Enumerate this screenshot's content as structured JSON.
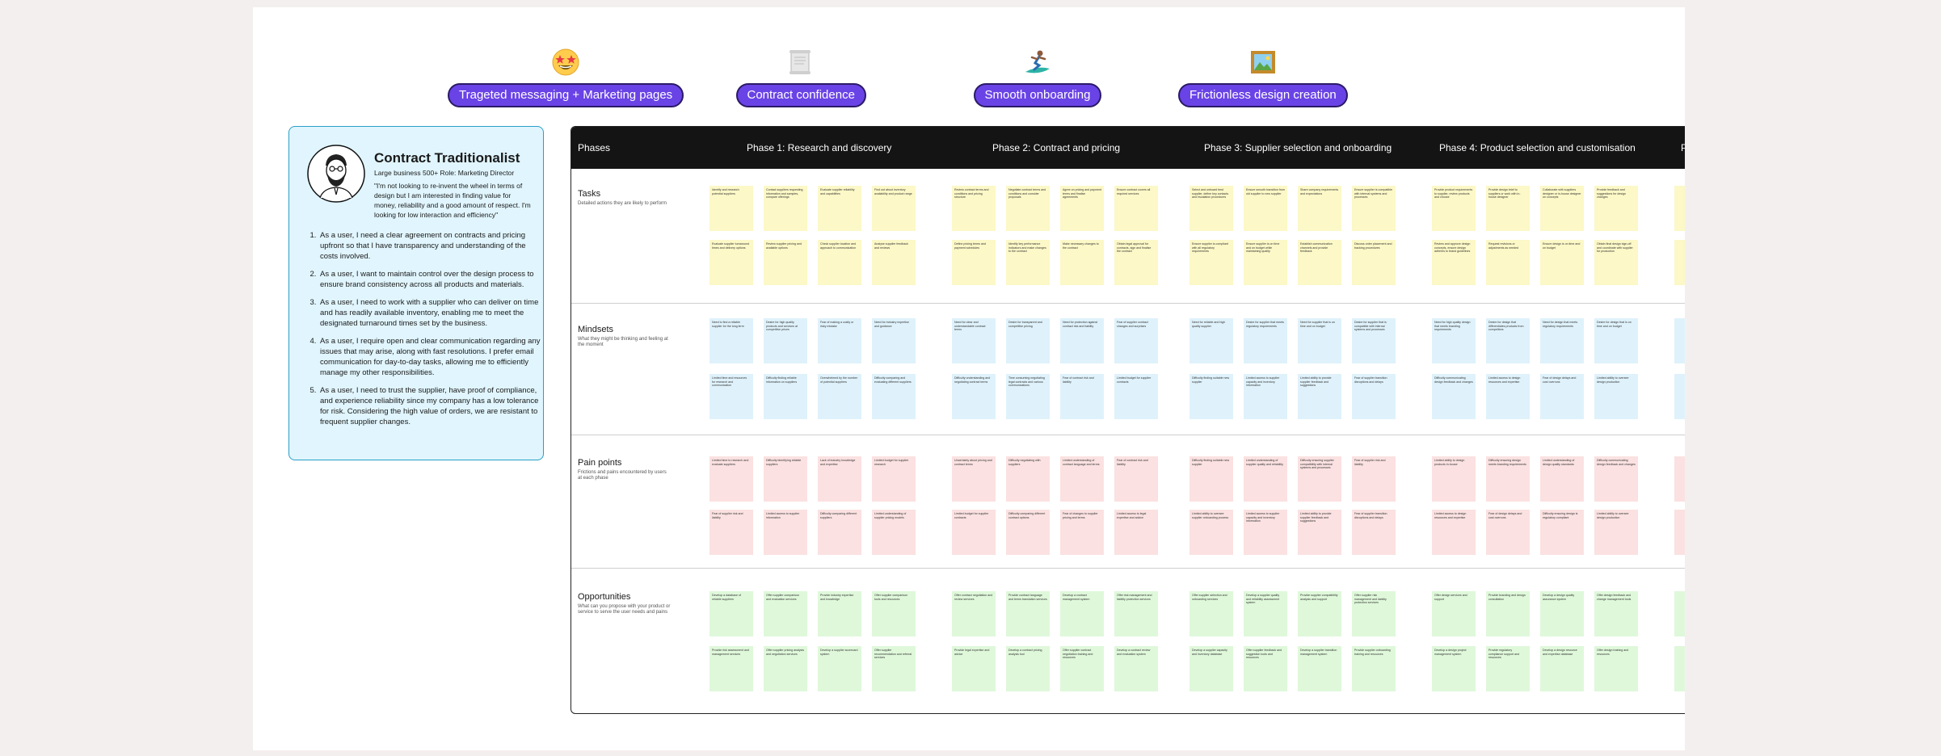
{
  "themes": [
    {
      "label": "Trageted messaging + Marketing pages",
      "icon": "star-struck-face-icon",
      "center": 700
    },
    {
      "label": "Contract confidence",
      "icon": "scroll-icon",
      "center": 991
    },
    {
      "label": "Smooth onboarding",
      "icon": "surfer-icon",
      "center": 1284
    },
    {
      "label": "Frictionless design creation",
      "icon": "framed-picture-icon",
      "center": 1563
    }
  ],
  "persona": {
    "name": "Contract Traditionalist",
    "role": "Large business 500+   Role: Marketing Director",
    "quote": "\"I'm not looking to re-invent the wheel in terms of design but I am interested in finding value for money, reliability and a good amount of respect. I'm looking for low interaction and efficiency\"",
    "needs": [
      "As a user, I need a clear agreement on contracts and pricing upfront so that I have transparency and understanding of the costs involved.",
      "As a user, I want to maintain control over the design process to ensure brand consistency across all products and materials.",
      "As a user, I need to work with a supplier who can deliver on time and has readily available inventory, enabling me to meet the designated turnaround times set by the business.",
      "As a user, I require open and clear communication regarding any issues that may arise, along with fast resolutions. I prefer email communication for day-to-day tasks, allowing me to efficiently manage my other responsibilities.",
      "As a user, I need to trust the supplier, have proof of compliance, and experience reliability since my company has a low tolerance for risk. Considering the high value of orders, we are resistant to frequent supplier changes."
    ]
  },
  "map": {
    "phases_label": "Phases",
    "phases": [
      {
        "label": "Phase 1: Research and discovery"
      },
      {
        "label": "Phase 2: Contract and pricing"
      },
      {
        "label": "Phase 3: Supplier selection and onboarding"
      },
      {
        "label": "Phase 4: Product selection and customisation"
      },
      {
        "label": "P"
      }
    ],
    "rows": [
      {
        "title": "Tasks",
        "subtitle": "Detailed actions they are likely to perform",
        "color": "yellow",
        "notes": [
          [
            "Identify and research potential suppliers",
            "Contact suppliers requesting information and samples, compare offerings",
            "Evaluate supplier reliability and capabilities",
            "Find out about inventory availability and product range"
          ],
          [
            "Evaluate supplier turnaround times and delivery options",
            "Review supplier pricing and available options",
            "Check supplier location and approach to communication",
            "Analyse supplier feedback and reviews"
          ],
          [
            "Review contract terms and conditions and pricing structure",
            "Negotiate contract terms and conditions and consider proposals",
            "Agree on pricing and payment terms and finalise agreements",
            "Ensure contract covers all required services"
          ],
          [
            "Define pricing terms and payment schedules",
            "Identify key performance indicators and make changes to the contract",
            "Make necessary changes to the contract",
            "Obtain legal approval for contracts, sign and finalise the contract"
          ],
          [
            "Select and onboard best supplier, define key contacts and escalation procedures",
            "Ensure smooth transition from old supplier to new supplier",
            "Share company requirements and expectations",
            "Ensure supplier is compatible with internal systems and processes"
          ],
          [
            "Ensure supplier is compliant with all regulatory requirements",
            "Ensure supplier is on time and on budget while maintaining quality",
            "Establish communication channels and provide feedback",
            "Discuss order placement and tracking procedures"
          ],
          [
            "Provide product requirements to supplier, review products and choose",
            "Provide design brief to suppliers or work with in-house designer",
            "Collaborate with suppliers designer or in-house designer on concepts",
            "Provide feedback and suggestions for design changes"
          ],
          [
            "Review and approve design concepts, ensure design adheres to brand guidelines",
            "Request revisions or adjustments as needed",
            "Ensure design is on time and on budget",
            "Obtain final design sign-off and coordinate with supplier for production"
          ]
        ]
      },
      {
        "title": "Mindsets",
        "subtitle": "What they might be thinking and feeling at the moment",
        "color": "blue",
        "notes": [
          [
            "Need to find a reliable supplier for the long term",
            "Desire for high quality products and services at competitive prices",
            "Fear of making a costly or risky mistake",
            "Need for industry expertise and guidance"
          ],
          [
            "Limited time and resources for research and communication",
            "Difficulty finding reliable information on suppliers",
            "Overwhelmed by the number of potential suppliers",
            "Difficulty comparing and evaluating different suppliers"
          ],
          [
            "Need for clear and understandable contract terms",
            "Desire for transparent and competitive pricing",
            "Need for protection against contract risk and liability",
            "Fear of supplier contract changes and surprises"
          ],
          [
            "Difficulty understanding and negotiating contract terms",
            "Time consuming negotiating legal contracts and various communications",
            "Fear of contract risk and liability",
            "Limited budget for supplier contracts"
          ],
          [
            "Need for reliable and high quality supplier",
            "Desire for supplier that meets regulatory requirements",
            "Need for supplier that is on time and on budget",
            "Desire for supplier that is compatible with internal systems and processes"
          ],
          [
            "Difficulty finding suitable new supplier",
            "Limited access to supplier capacity and inventory information",
            "Limited ability to provide supplier feedback and suggestions",
            "Fear of supplier transition disruptions and delays"
          ],
          [
            "Need for high quality design that meets branding requirements",
            "Desire for design that differentiates products from competitors",
            "Need for design that meets regulatory requirements",
            "Desire for design that is on time and on budget"
          ],
          [
            "Difficulty communicating design feedback and changes",
            "Limited access to design resources and expertise",
            "Fear of design delays and cost overruns",
            "Limited ability to oversee design production"
          ]
        ]
      },
      {
        "title": "Pain points",
        "subtitle": "Frictions and pains encountered by users at each phase",
        "color": "red",
        "notes": [
          [
            "Limited time to research and evaluate suppliers",
            "Difficulty identifying reliable suppliers",
            "Lack of industry knowledge and expertise",
            "Limited budget for supplier research"
          ],
          [
            "Fear of supplier risk and liability",
            "Limited access to supplier information",
            "Difficulty comparing different suppliers",
            "Limited understanding of supplier pricing models"
          ],
          [
            "Uncertainty about pricing and contract terms",
            "Difficulty negotiating with suppliers",
            "Limited understanding of contract language and terms",
            "Fear of contract risk and liability"
          ],
          [
            "Limited budget for supplier contracts",
            "Difficulty comparing different contract options",
            "Fear of changes to supplier pricing and terms",
            "Limited access to legal expertise and advice"
          ],
          [
            "Difficulty finding suitable new supplier",
            "Limited understanding of supplier quality and reliability",
            "Difficulty ensuring supplier compatibility with internal systems and processes",
            "Fear of supplier risk and liability"
          ],
          [
            "Limited ability to oversee supplier onboarding process",
            "Limited access to supplier capacity and inventory information",
            "Limited ability to provide supplier feedback and suggestions",
            "Fear of supplier transition disruptions and delays"
          ],
          [
            "Limited ability to design products in-house",
            "Difficulty ensuring design meets branding requirements",
            "Limited understanding of design quality standards",
            "Difficulty communicating design feedback and changes"
          ],
          [
            "Limited access to design resources and expertise",
            "Fear of design delays and cost overruns",
            "Difficulty ensuring design is regulatory compliant",
            "Limited ability to oversee design production"
          ]
        ]
      },
      {
        "title": "Opportunities",
        "subtitle": "What can you propose with your product or service to serve the user needs and pains",
        "color": "green",
        "notes": [
          [
            "Develop a database of reliable suppliers",
            "Offer supplier comparison and evaluation services",
            "Provide industry expertise and knowledge",
            "Offer supplier comparison tools and resources"
          ],
          [
            "Provide risk assessment and management services",
            "Offer supplier pricing analysis and negotiation services",
            "Develop a supplier scorecard system",
            "Offer supplier recommendation and referral services"
          ],
          [
            "Offer contract negotiation and review services",
            "Provide contract language and terms translation services",
            "Develop a contract management system",
            "Offer risk management and liability protection services"
          ],
          [
            "Provide legal expertise and advice",
            "Develop a contract pricing analysis tool",
            "Offer supplier contract negotiation training and resources",
            "Develop a contract review and evaluation system"
          ],
          [
            "Offer supplier selection and onboarding services",
            "Develop a supplier quality and reliability assessment system",
            "Provide supplier compatibility analysis and support",
            "Offer supplier risk management and liability protection services"
          ],
          [
            "Develop a supplier capacity and inventory database",
            "Offer supplier feedback and suggestion tools and resources",
            "Develop a supplier transition management system",
            "Provide supplier onboarding training and resources"
          ],
          [
            "Offer design services and support",
            "Provide branding and design consultation",
            "Develop a design quality assurance system",
            "Offer design feedback and change management tools"
          ],
          [
            "Develop a design project management system",
            "Provide regulatory compliance support and resources",
            "Develop a design resource and expertise database",
            "Offer design training and resources"
          ]
        ]
      }
    ]
  }
}
